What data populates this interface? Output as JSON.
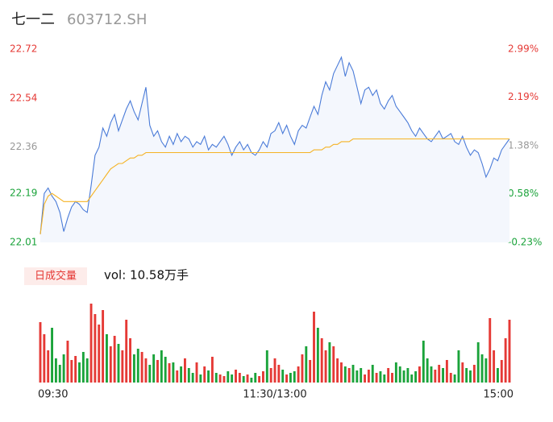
{
  "chart_data": {
    "type": "intraday",
    "title": "七一二",
    "subtitle": "603712.SH",
    "volume_label": "日成交量",
    "volume_text": "vol: 10.58万手",
    "xlim": [
      0,
      120
    ],
    "xticks": [
      {
        "value": 0,
        "label": "09:30"
      },
      {
        "value": 60,
        "label": "11:30/13:00"
      },
      {
        "value": 120,
        "label": "15:00"
      }
    ],
    "ylim": [
      22.01,
      22.72
    ],
    "yticks": [
      22.01,
      22.19,
      22.36,
      22.54,
      22.72
    ],
    "y2lim": [
      -0.23,
      2.99
    ],
    "y2ticks": [
      {
        "value": -0.23,
        "label": "-0.23%"
      },
      {
        "value": 0.58,
        "label": "0.58%"
      },
      {
        "value": 1.38,
        "label": "1.38%"
      },
      {
        "value": 2.19,
        "label": "2.19%"
      },
      {
        "value": 2.99,
        "label": "2.99%"
      }
    ],
    "tick_colors": [
      "#1aa33a",
      "#1aa33a",
      "#999999",
      "#e53935",
      "#e53935"
    ],
    "series": [
      {
        "color": "#4a7bd8",
        "fill": "#f4f7fd",
        "values": [
          22.04,
          22.19,
          22.21,
          22.18,
          22.16,
          22.12,
          22.05,
          22.1,
          22.14,
          22.16,
          22.15,
          22.13,
          22.12,
          22.22,
          22.33,
          22.36,
          22.43,
          22.4,
          22.45,
          22.48,
          22.42,
          22.46,
          22.5,
          22.53,
          22.49,
          22.46,
          22.52,
          22.58,
          22.44,
          22.4,
          22.42,
          22.38,
          22.36,
          22.4,
          22.37,
          22.41,
          22.38,
          22.4,
          22.39,
          22.36,
          22.38,
          22.37,
          22.4,
          22.35,
          22.37,
          22.36,
          22.38,
          22.4,
          22.37,
          22.33,
          22.36,
          22.38,
          22.35,
          22.37,
          22.34,
          22.33,
          22.35,
          22.38,
          22.36,
          22.41,
          22.42,
          22.45,
          22.41,
          22.44,
          22.4,
          22.37,
          22.42,
          22.44,
          22.43,
          22.47,
          22.51,
          22.48,
          22.55,
          22.6,
          22.57,
          22.63,
          22.66,
          22.69,
          22.62,
          22.67,
          22.64,
          22.58,
          22.52,
          22.57,
          22.58,
          22.55,
          22.57,
          22.52,
          22.5,
          22.53,
          22.55,
          22.51,
          22.49,
          22.47,
          22.45,
          22.42,
          22.4,
          22.43,
          22.41,
          22.39,
          22.38,
          22.4,
          22.42,
          22.39,
          22.4,
          22.41,
          22.38,
          22.37,
          22.4,
          22.36,
          22.33,
          22.35,
          22.34,
          22.3,
          22.25,
          22.28,
          22.32,
          22.31,
          22.35,
          22.37,
          22.39
        ]
      },
      {
        "color": "#f5b324",
        "values": [
          22.04,
          22.15,
          22.18,
          22.19,
          22.18,
          22.17,
          22.16,
          22.16,
          22.16,
          22.16,
          22.16,
          22.16,
          22.16,
          22.18,
          22.2,
          22.22,
          22.24,
          22.26,
          22.28,
          22.29,
          22.3,
          22.3,
          22.31,
          22.32,
          22.32,
          22.33,
          22.33,
          22.34,
          22.34,
          22.34,
          22.34,
          22.34,
          22.34,
          22.34,
          22.34,
          22.34,
          22.34,
          22.34,
          22.34,
          22.34,
          22.34,
          22.34,
          22.34,
          22.34,
          22.34,
          22.34,
          22.34,
          22.34,
          22.34,
          22.34,
          22.34,
          22.34,
          22.34,
          22.34,
          22.34,
          22.34,
          22.34,
          22.34,
          22.34,
          22.34,
          22.34,
          22.34,
          22.34,
          22.34,
          22.34,
          22.34,
          22.34,
          22.34,
          22.34,
          22.34,
          22.35,
          22.35,
          22.35,
          22.36,
          22.36,
          22.37,
          22.37,
          22.38,
          22.38,
          22.38,
          22.39,
          22.39,
          22.39,
          22.39,
          22.39,
          22.39,
          22.39,
          22.39,
          22.39,
          22.39,
          22.39,
          22.39,
          22.39,
          22.39,
          22.39,
          22.39,
          22.39,
          22.39,
          22.39,
          22.39,
          22.39,
          22.39,
          22.39,
          22.39,
          22.39,
          22.39,
          22.39,
          22.39,
          22.39,
          22.39,
          22.39,
          22.39,
          22.39,
          22.39,
          22.39,
          22.39,
          22.39,
          22.39,
          22.39,
          22.39,
          22.39
        ]
      }
    ],
    "volume": {
      "vlim": [
        0,
        100
      ],
      "values": [
        75,
        60,
        40,
        68,
        30,
        22,
        35,
        52,
        28,
        33,
        25,
        38,
        30,
        98,
        85,
        72,
        90,
        60,
        45,
        58,
        48,
        40,
        78,
        55,
        35,
        42,
        38,
        30,
        22,
        35,
        28,
        40,
        32,
        24,
        25,
        15,
        20,
        30,
        18,
        12,
        25,
        10,
        20,
        15,
        32,
        12,
        10,
        8,
        14,
        10,
        16,
        12,
        8,
        10,
        6,
        12,
        8,
        14,
        40,
        18,
        30,
        22,
        16,
        10,
        12,
        14,
        20,
        35,
        45,
        28,
        88,
        68,
        55,
        40,
        50,
        45,
        30,
        25,
        20,
        18,
        22,
        15,
        18,
        10,
        16,
        22,
        12,
        14,
        10,
        18,
        12,
        25,
        20,
        15,
        18,
        10,
        14,
        20,
        52,
        30,
        20,
        16,
        22,
        18,
        28,
        12,
        10,
        40,
        25,
        18,
        15,
        22,
        50,
        35,
        30,
        80,
        40,
        18,
        28,
        55,
        78
      ],
      "colors": [
        "#e53935",
        "#e53935",
        "#e53935",
        "#1aa33a",
        "#1aa33a",
        "#1aa33a",
        "#1aa33a",
        "#e53935",
        "#e53935",
        "#e53935",
        "#1aa33a",
        "#1aa33a",
        "#1aa33a",
        "#e53935",
        "#e53935",
        "#e53935",
        "#e53935",
        "#1aa33a",
        "#e53935",
        "#e53935",
        "#1aa33a",
        "#e53935",
        "#e53935",
        "#e53935",
        "#1aa33a",
        "#1aa33a",
        "#e53935",
        "#e53935",
        "#1aa33a",
        "#1aa33a",
        "#e53935",
        "#1aa33a",
        "#1aa33a",
        "#e53935",
        "#1aa33a",
        "#e53935",
        "#1aa33a",
        "#e53935",
        "#1aa33a",
        "#1aa33a",
        "#e53935",
        "#1aa33a",
        "#e53935",
        "#1aa33a",
        "#e53935",
        "#1aa33a",
        "#e53935",
        "#e53935",
        "#1aa33a",
        "#1aa33a",
        "#e53935",
        "#e53935",
        "#1aa33a",
        "#e53935",
        "#1aa33a",
        "#1aa33a",
        "#e53935",
        "#e53935",
        "#1aa33a",
        "#e53935",
        "#e53935",
        "#e53935",
        "#1aa33a",
        "#e53935",
        "#1aa33a",
        "#1aa33a",
        "#e53935",
        "#e53935",
        "#1aa33a",
        "#e53935",
        "#e53935",
        "#1aa33a",
        "#e53935",
        "#e53935",
        "#1aa33a",
        "#e53935",
        "#e53935",
        "#e53935",
        "#1aa33a",
        "#e53935",
        "#1aa33a",
        "#1aa33a",
        "#1aa33a",
        "#e53935",
        "#e53935",
        "#1aa33a",
        "#e53935",
        "#1aa33a",
        "#1aa33a",
        "#e53935",
        "#e53935",
        "#1aa33a",
        "#1aa33a",
        "#1aa33a",
        "#1aa33a",
        "#1aa33a",
        "#1aa33a",
        "#e53935",
        "#1aa33a",
        "#1aa33a",
        "#1aa33a",
        "#e53935",
        "#e53935",
        "#1aa33a",
        "#e53935",
        "#e53935",
        "#1aa33a",
        "#1aa33a",
        "#e53935",
        "#1aa33a",
        "#1aa33a",
        "#e53935",
        "#1aa33a",
        "#1aa33a",
        "#1aa33a",
        "#e53935",
        "#e53935",
        "#1aa33a",
        "#e53935",
        "#e53935",
        "#e53935"
      ]
    }
  }
}
